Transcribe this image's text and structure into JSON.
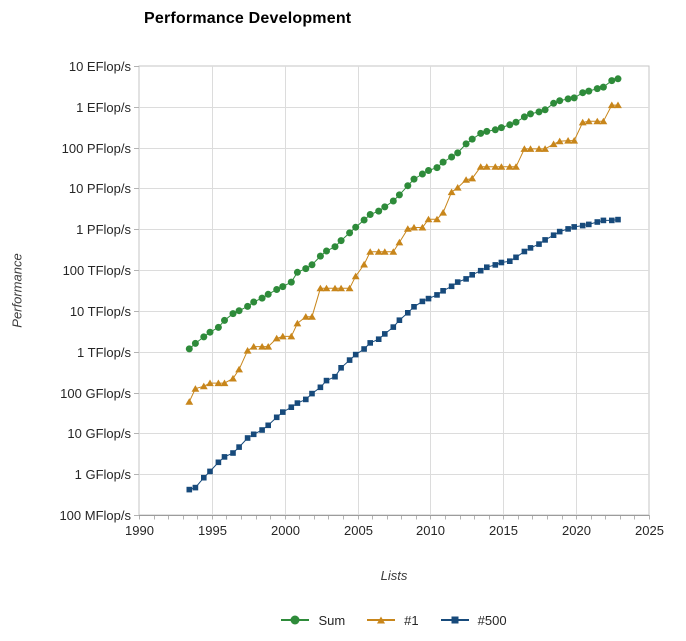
{
  "chart_data": {
    "type": "scatter",
    "title": "Performance Development",
    "xlabel": "Lists",
    "ylabel": "Performance",
    "grid": true,
    "legend_position": "bottom-center",
    "xlim": [
      1990,
      2025
    ],
    "x_major_ticks": [
      1990,
      1995,
      2000,
      2005,
      2010,
      2015,
      2020,
      2025
    ],
    "x_minor_tick_step_years": 1,
    "ylim_log10_gflops": [
      -1,
      10
    ],
    "y_ticks": [
      {
        "label": "10 EFlop/s",
        "log10_gflops": 10
      },
      {
        "label": "1 EFlop/s",
        "log10_gflops": 9
      },
      {
        "label": "100 PFlop/s",
        "log10_gflops": 8
      },
      {
        "label": "10 PFlop/s",
        "log10_gflops": 7
      },
      {
        "label": "1 PFlop/s",
        "log10_gflops": 6
      },
      {
        "label": "100 TFlop/s",
        "log10_gflops": 5
      },
      {
        "label": "10 TFlop/s",
        "log10_gflops": 4
      },
      {
        "label": "1 TFlop/s",
        "log10_gflops": 3
      },
      {
        "label": "100 GFlop/s",
        "log10_gflops": 2
      },
      {
        "label": "10 GFlop/s",
        "log10_gflops": 1
      },
      {
        "label": "1 GFlop/s",
        "log10_gflops": 0
      },
      {
        "label": "100 MFlop/s",
        "log10_gflops": -1
      }
    ],
    "lists": [
      "06/1993",
      "11/1993",
      "06/1994",
      "11/1994",
      "06/1995",
      "11/1995",
      "06/1996",
      "11/1996",
      "06/1997",
      "11/1997",
      "06/1998",
      "11/1998",
      "06/1999",
      "11/1999",
      "06/2000",
      "11/2000",
      "06/2001",
      "11/2001",
      "06/2002",
      "11/2002",
      "06/2003",
      "11/2003",
      "06/2004",
      "11/2004",
      "06/2005",
      "11/2005",
      "06/2006",
      "11/2006",
      "06/2007",
      "11/2007",
      "06/2008",
      "11/2008",
      "06/2009",
      "11/2009",
      "06/2010",
      "11/2010",
      "06/2011",
      "11/2011",
      "06/2012",
      "11/2012",
      "06/2013",
      "11/2013",
      "06/2014",
      "11/2014",
      "06/2015",
      "11/2015",
      "06/2016",
      "11/2016",
      "06/2017",
      "11/2017",
      "06/2018",
      "11/2018",
      "06/2019",
      "11/2019",
      "06/2020",
      "11/2020",
      "06/2021",
      "11/2021",
      "06/2022",
      "11/2022"
    ],
    "series": [
      {
        "name": "Sum",
        "marker": "circle",
        "color": "#2e8b3a",
        "values_gflops": [
          1170,
          1600,
          2310,
          3010,
          3940,
          5870,
          8600,
          10100,
          12900,
          16500,
          20600,
          25500,
          33400,
          39400,
          50900,
          88100,
          108800,
          134400,
          220600,
          293000,
          374700,
          528000,
          813000,
          1127000,
          1690000,
          2300000,
          2790000,
          3540000,
          4920000,
          6970000,
          11700000,
          16950000,
          22600000,
          27600000,
          32400000,
          44200000,
          58900000,
          74200000,
          123400000,
          162000000,
          223000000,
          250000000,
          274000000,
          309000000,
          363000000,
          420000000,
          566800000,
          672000000,
          749000000,
          845000000,
          1220000000,
          1410000000,
          1560000000,
          1650000000,
          2220000000,
          2430000000,
          2800000000,
          3040000000,
          4400000000,
          4860000000
        ]
      },
      {
        "name": "#1",
        "marker": "triangle",
        "color": "#c8861b",
        "values_gflops": [
          59.7,
          124,
          143.4,
          170.4,
          170.4,
          170.4,
          220.4,
          368.2,
          1068,
          1338,
          1338,
          1338,
          2121,
          2379,
          2379,
          4938,
          7226,
          7226,
          35860,
          35860,
          35860,
          35860,
          35860,
          70720,
          136800,
          280600,
          280600,
          280600,
          280600,
          478200,
          1026000,
          1105000,
          1105000,
          1759000,
          1759000,
          2566000,
          8162000,
          10510000,
          16320000,
          17590000,
          33860000,
          33860000,
          33860000,
          33860000,
          33860000,
          33860000,
          93010000,
          93010000,
          93010000,
          93010000,
          122300000,
          143500000,
          148600000,
          148600000,
          415530000,
          442010000,
          442010000,
          442010000,
          1102000000,
          1102000000
        ]
      },
      {
        "name": "#500",
        "marker": "square",
        "color": "#174a7b",
        "values_gflops": [
          0.42,
          0.47,
          0.82,
          1.17,
          1.96,
          2.65,
          3.3,
          4.62,
          7.68,
          9.51,
          12.1,
          15.8,
          24.7,
          33.1,
          43.8,
          55.1,
          67.8,
          94.3,
          134.3,
          195.8,
          243.9,
          403.4,
          624,
          850,
          1166,
          1646,
          2026,
          2737,
          4005,
          5930,
          9000,
          12640,
          17100,
          20050,
          24670,
          31110,
          40190,
          50920,
          60820,
          76460,
          96620,
          117800,
          133700,
          153600,
          164800,
          206300,
          286100,
          349300,
          432200,
          548700,
          716000,
          874800,
          1022000,
          1142000,
          1230000,
          1320000,
          1510000,
          1650000,
          1650000,
          1730000
        ]
      }
    ],
    "colors": {
      "grid": "#dcdcdc",
      "plot_border": "#c6c6c6",
      "axis_line": "#9c9c9c",
      "tick": "#b3b3b3",
      "tick_label": "#262626",
      "background": "#ffffff"
    }
  }
}
